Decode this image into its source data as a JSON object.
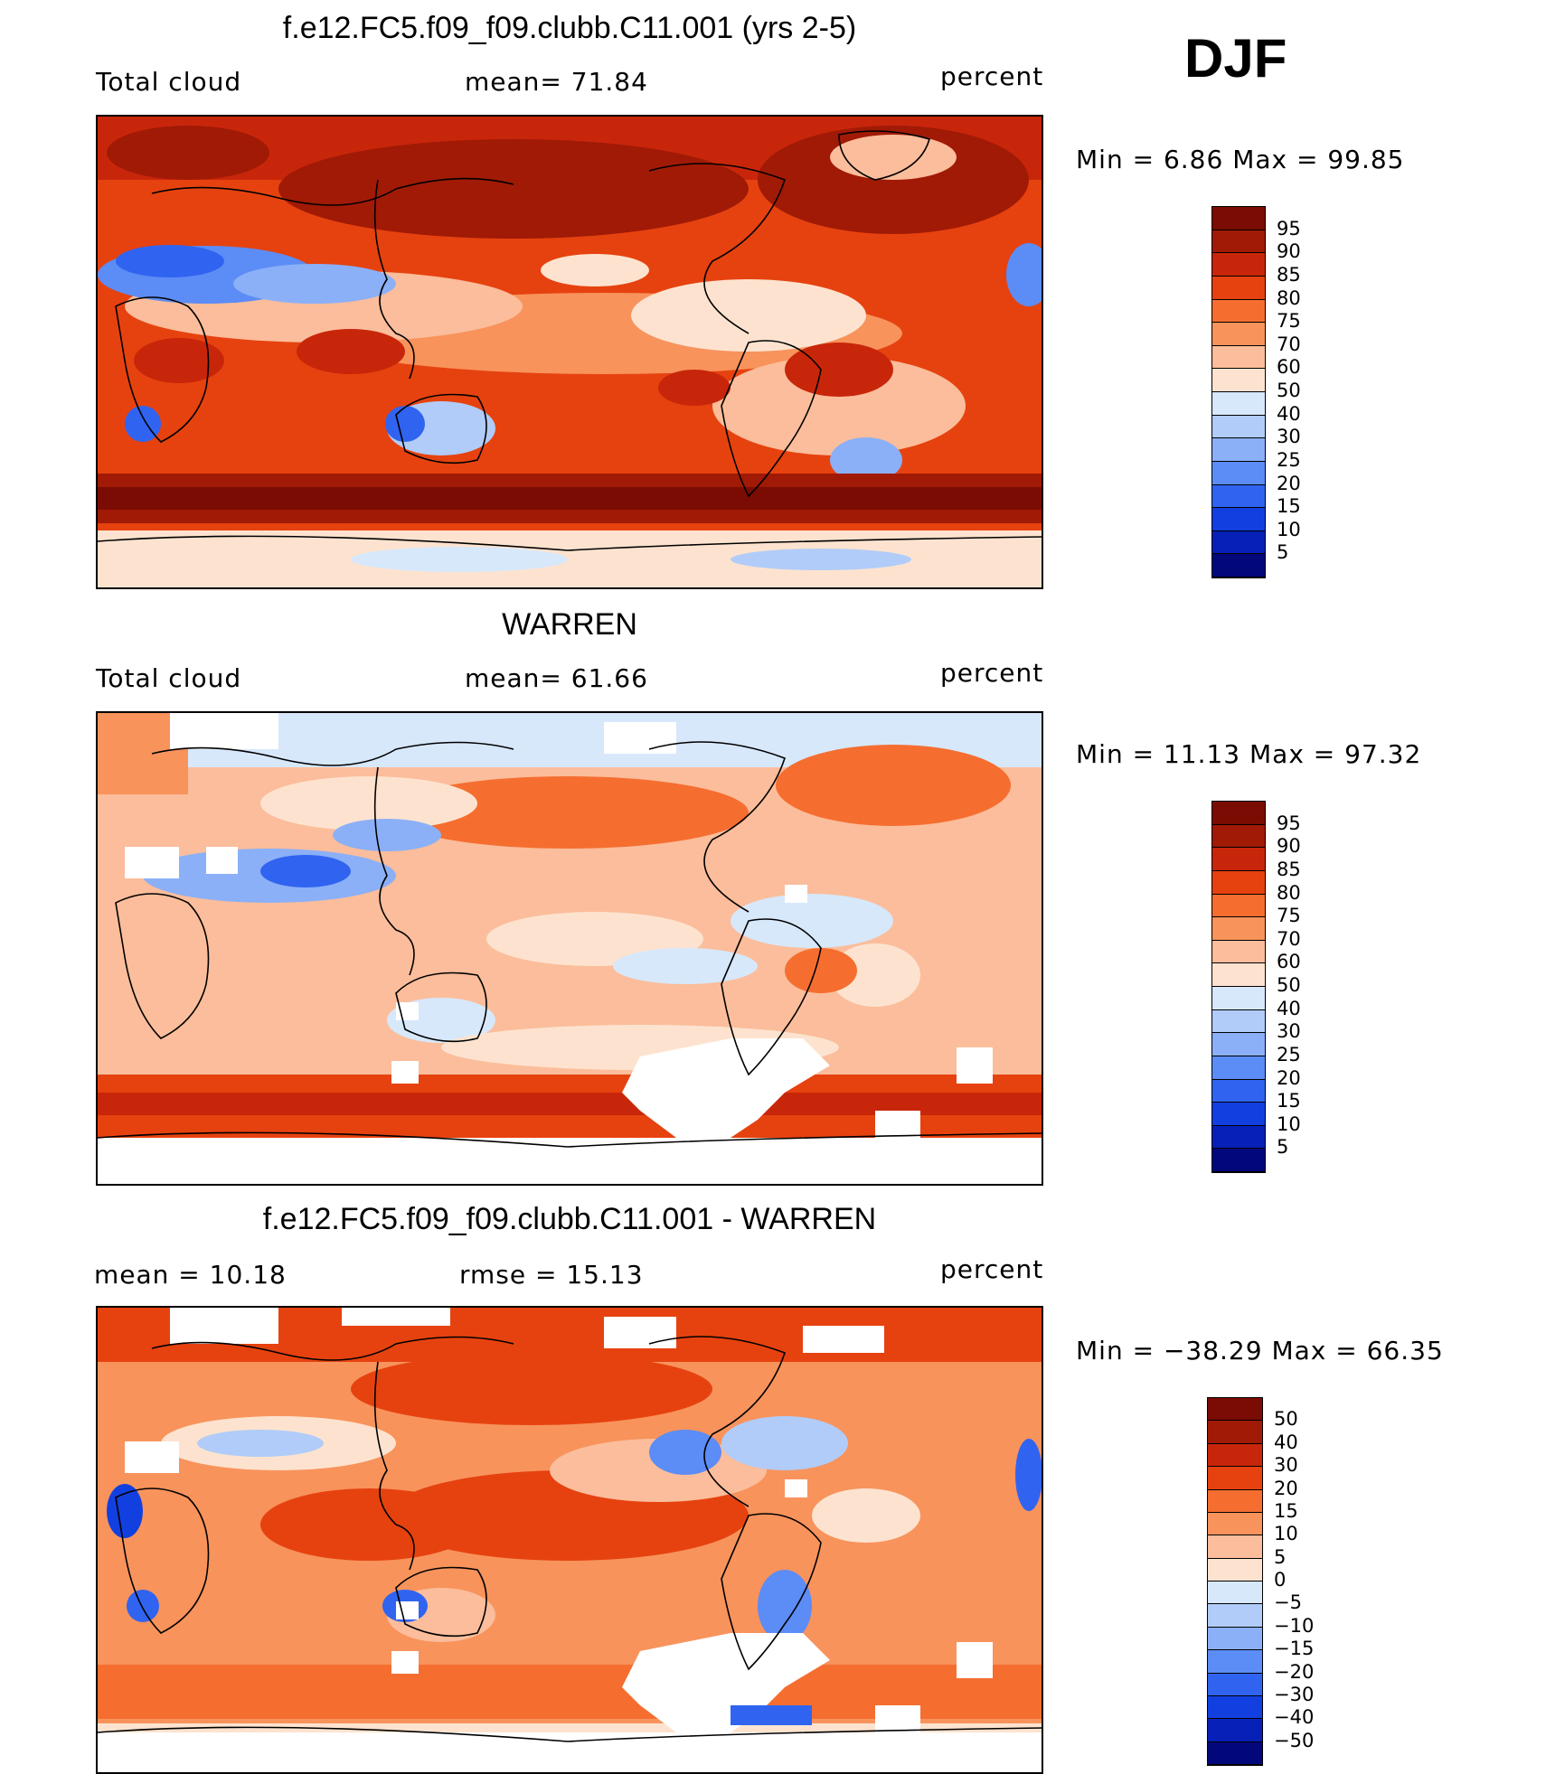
{
  "season": "DJF",
  "panels": [
    {
      "title": "f.e12.FC5.f09_f09.clubb.C11.001 (yrs 2-5)",
      "left_label": "Total cloud",
      "center_label": "mean=   71.84",
      "right_label": "percent",
      "minmax": "Min =    6.86  Max =   99.85",
      "colorbar_ticks": [
        "95",
        "90",
        "85",
        "80",
        "75",
        "70",
        "60",
        "50",
        "40",
        "30",
        "25",
        "20",
        "15",
        "10",
        "5"
      ],
      "colors": [
        "#7a0c03",
        "#a01a06",
        "#c8260a",
        "#e6420f",
        "#f56e30",
        "#f8935c",
        "#fbbd9b",
        "#fde3cf",
        "#d7e8fb",
        "#b1ccf8",
        "#8bb0f7",
        "#5c8cf5",
        "#3064f0",
        "#1240e0",
        "#0720b8",
        "#02087a"
      ]
    },
    {
      "title": "WARREN",
      "left_label": "Total cloud",
      "center_label": "mean=   61.66",
      "right_label": "percent",
      "minmax": "Min =   11.13  Max =   97.32",
      "colorbar_ticks": [
        "95",
        "90",
        "85",
        "80",
        "75",
        "70",
        "60",
        "50",
        "40",
        "30",
        "25",
        "20",
        "15",
        "10",
        "5"
      ],
      "colors": [
        "#7a0c03",
        "#a01a06",
        "#c8260a",
        "#e6420f",
        "#f56e30",
        "#f8935c",
        "#fbbd9b",
        "#fde3cf",
        "#d7e8fb",
        "#b1ccf8",
        "#8bb0f7",
        "#5c8cf5",
        "#3064f0",
        "#1240e0",
        "#0720b8",
        "#02087a"
      ]
    },
    {
      "title": "f.e12.FC5.f09_f09.clubb.C11.001 - WARREN",
      "left_label": "mean  =    10.18",
      "center_label": "rmse  =    15.13",
      "right_label": "percent",
      "minmax": "Min  = −38.29  Max  =   66.35",
      "colorbar_ticks": [
        "50",
        "40",
        "30",
        "20",
        "15",
        "10",
        "5",
        "0",
        "−5",
        "−10",
        "−15",
        "−20",
        "−30",
        "−40",
        "−50"
      ],
      "colors": [
        "#7a0c03",
        "#a01a06",
        "#c8260a",
        "#e6420f",
        "#f56e30",
        "#f8935c",
        "#fbbd9b",
        "#fde3cf",
        "#d7e8fb",
        "#b1ccf8",
        "#8bb0f7",
        "#5c8cf5",
        "#3064f0",
        "#1240e0",
        "#0720b8",
        "#02087a"
      ]
    }
  ]
}
